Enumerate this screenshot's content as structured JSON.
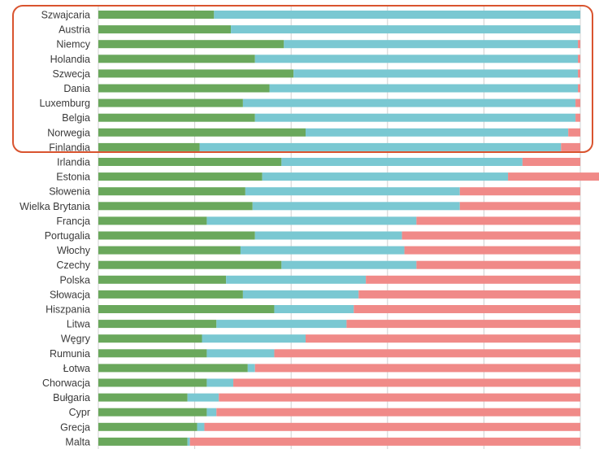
{
  "chart_data": {
    "type": "bar",
    "orientation": "horizontal",
    "stacked": "100%",
    "grid": true,
    "xlim": [
      0,
      100
    ],
    "x_gridlines": [
      0,
      20,
      40,
      60,
      80,
      100
    ],
    "categories": [
      "Szwajcaria",
      "Austria",
      "Niemcy",
      "Holandia",
      "Szwecja",
      "Dania",
      "Luxemburg",
      "Belgia",
      "Norwegia",
      "Finlandia",
      "Irlandia",
      "Estonia",
      "Słowenia",
      "Wielka Brytania",
      "Francja",
      "Portugalia",
      "Włochy",
      "Czechy",
      "Polska",
      "Słowacja",
      "Hiszpania",
      "Litwa",
      "Węgry",
      "Rumunia",
      "Łotwa",
      "Chorwacja",
      "Bułgaria",
      "Cypr",
      "Grecja",
      "Malta"
    ],
    "series": [
      {
        "color": "#6aa85c",
        "values": [
          24,
          27.5,
          38.5,
          32.5,
          40.5,
          35.5,
          30,
          32.5,
          43,
          21,
          38,
          34,
          30.5,
          32,
          22.5,
          32.5,
          29.5,
          38,
          26.5,
          30,
          36.5,
          24.5,
          21.5,
          22.5,
          31,
          22.5,
          18.5,
          22.5,
          20.5,
          18.5
        ]
      },
      {
        "color": "#7ac8d2",
        "values": [
          76,
          72.5,
          61,
          67,
          59,
          64,
          69,
          66.5,
          54.5,
          75,
          50,
          51,
          44.5,
          43,
          43.5,
          30.5,
          34,
          28,
          29,
          24,
          16.5,
          27,
          21.5,
          14,
          1.5,
          5.5,
          6.5,
          2,
          1.5,
          0.5
        ]
      },
      {
        "color": "#f08a88",
        "values": [
          0,
          0,
          0.5,
          0.5,
          0.5,
          0.5,
          1,
          1,
          2.5,
          4,
          12,
          21,
          25,
          25,
          34,
          37,
          36.5,
          34,
          44.5,
          46,
          47,
          48.5,
          57,
          63.5,
          67.5,
          72,
          75,
          75.5,
          78,
          81
        ]
      }
    ],
    "highlighted_categories": [
      "Szwajcaria",
      "Austria",
      "Niemcy",
      "Holandia",
      "Szwecja",
      "Dania",
      "Luxemburg",
      "Belgia",
      "Norwegia",
      "Finlandia"
    ],
    "highlight_color": "#d9542f"
  }
}
